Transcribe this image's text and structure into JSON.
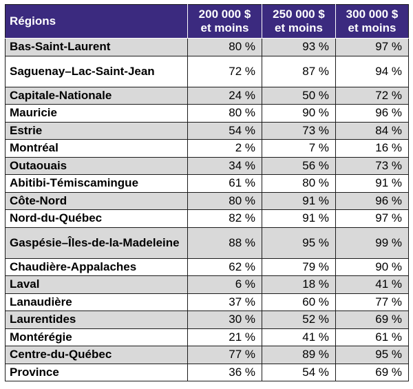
{
  "headers": {
    "region": "Régions",
    "col1": "200 000 $ et moins",
    "col2": "250 000 $ et moins",
    "col3": "300 000 $ et moins"
  },
  "rows": [
    {
      "region": "Bas-Saint-Laurent",
      "v1": "80 %",
      "v2": "93 %",
      "v3": "97 %"
    },
    {
      "region": "Saguenay–Lac-Saint-Jean",
      "v1": "72 %",
      "v2": "87 %",
      "v3": "94 %"
    },
    {
      "region": "Capitale-Nationale",
      "v1": "24 %",
      "v2": "50 %",
      "v3": "72 %"
    },
    {
      "region": "Mauricie",
      "v1": "80 %",
      "v2": "90 %",
      "v3": "96 %"
    },
    {
      "region": "Estrie",
      "v1": "54 %",
      "v2": "73 %",
      "v3": "84 %"
    },
    {
      "region": "Montréal",
      "v1": "2 %",
      "v2": "7 %",
      "v3": "16 %"
    },
    {
      "region": "Outaouais",
      "v1": "34 %",
      "v2": "56 %",
      "v3": "73 %"
    },
    {
      "region": "Abitibi-Témiscamingue",
      "v1": "61 %",
      "v2": "80 %",
      "v3": "91 %"
    },
    {
      "region": "Côte-Nord",
      "v1": "80 %",
      "v2": "91 %",
      "v3": "96 %"
    },
    {
      "region": "Nord-du-Québec",
      "v1": "82 %",
      "v2": "91 %",
      "v3": "97 %"
    },
    {
      "region": "Gaspésie–Îles-de-la-Madeleine",
      "v1": "88 %",
      "v2": "95 %",
      "v3": "99 %"
    },
    {
      "region": "Chaudière-Appalaches",
      "v1": "62 %",
      "v2": "79 %",
      "v3": "90 %"
    },
    {
      "region": "Laval",
      "v1": "6 %",
      "v2": "18 %",
      "v3": "41 %"
    },
    {
      "region": "Lanaudière",
      "v1": "37 %",
      "v2": "60 %",
      "v3": "77 %"
    },
    {
      "region": "Laurentides",
      "v1": "30 %",
      "v2": "52 %",
      "v3": "69 %"
    },
    {
      "region": "Montérégie",
      "v1": "21 %",
      "v2": "41 %",
      "v3": "61 %"
    },
    {
      "region": "Centre-du-Québec",
      "v1": "77 %",
      "v2": "89 %",
      "v3": "95 %"
    },
    {
      "region": "Province",
      "v1": "36 %",
      "v2": "54 %",
      "v3": "69 %"
    }
  ],
  "colors": {
    "header_bg": "#3b2a7f",
    "shade_row": "#d9d9d9",
    "plain_row": "#ffffff"
  }
}
